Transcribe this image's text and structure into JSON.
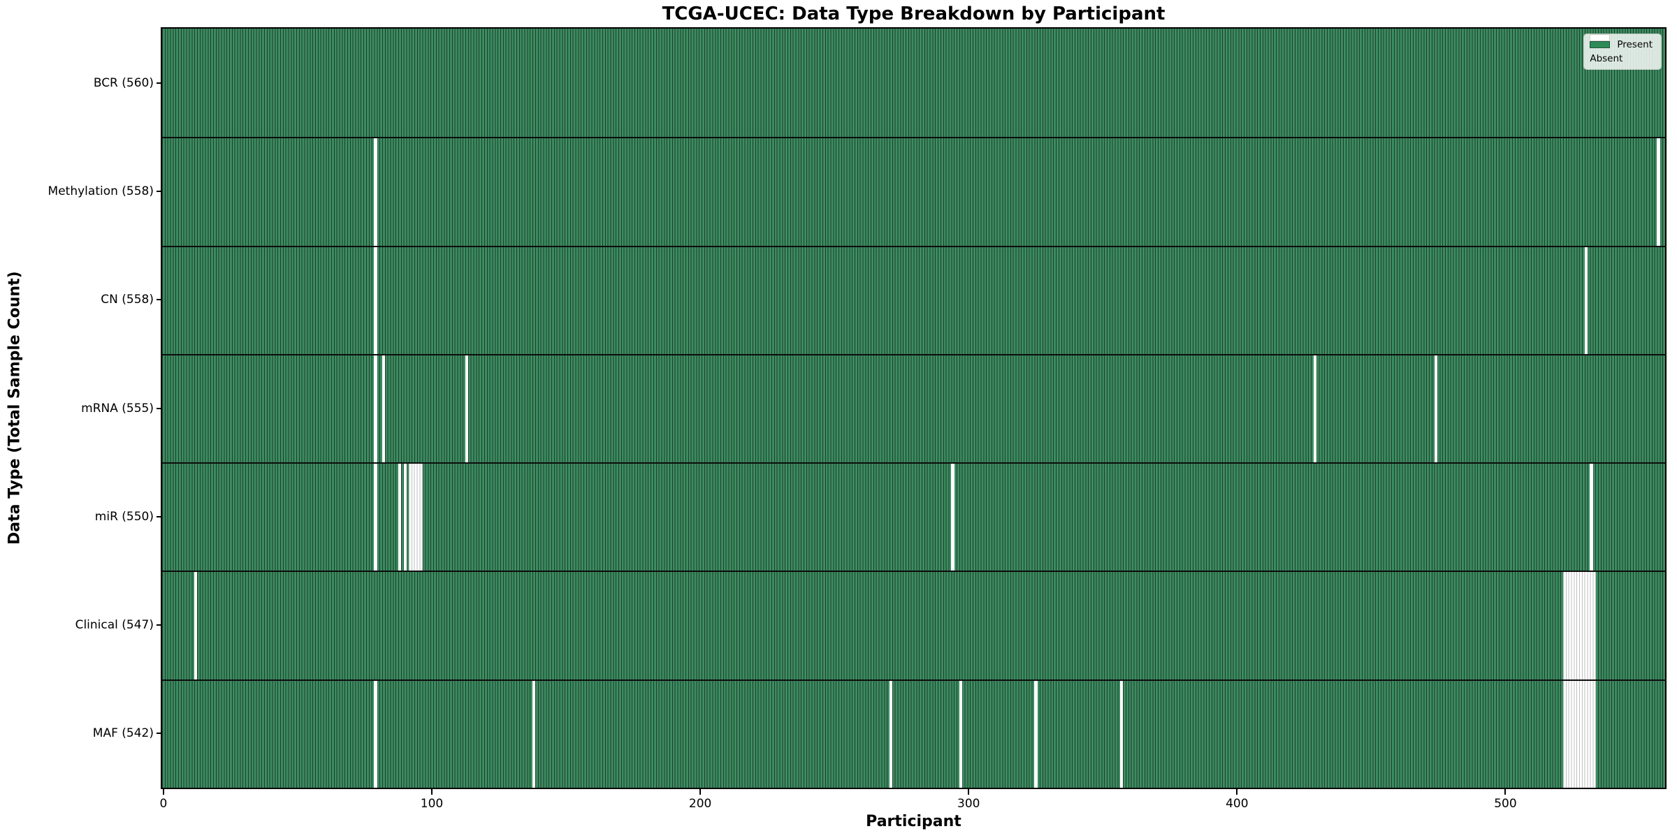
{
  "chart_data": {
    "type": "heatmap",
    "title": "TCGA-UCEC: Data Type Breakdown by Participant",
    "xlabel": "Participant",
    "ylabel": "Data Type (Total Sample Count)",
    "n_participants": 560,
    "x_ticks": [
      0,
      100,
      200,
      300,
      400,
      500
    ],
    "legend": {
      "position": "upper right",
      "present_label": "Present",
      "absent_label": "Absent"
    },
    "colors": {
      "present_fill": "#3b8d61",
      "bar_edge": "#203c2a",
      "absent_fill": "#ffffff",
      "absent_edge": "#bfbfbf",
      "row_divider": "#0d0d0d",
      "legend_present_swatch": "#2e8b57"
    },
    "rows": [
      {
        "name": "BCR",
        "label": "BCR (560)",
        "present_count": 560,
        "absent_participants": []
      },
      {
        "name": "Methylation",
        "label": "Methylation (558)",
        "present_count": 558,
        "absent_participants": [
          79,
          557
        ]
      },
      {
        "name": "CN",
        "label": "CN (558)",
        "present_count": 558,
        "absent_participants": [
          79,
          530
        ]
      },
      {
        "name": "mRNA",
        "label": "mRNA (555)",
        "present_count": 555,
        "absent_participants": [
          79,
          82,
          113,
          429,
          474
        ]
      },
      {
        "name": "miR",
        "label": "miR (550)",
        "present_count": 550,
        "absent_participants": [
          79,
          88,
          90,
          92,
          93,
          94,
          95,
          96,
          294,
          532
        ]
      },
      {
        "name": "Clinical",
        "label": "Clinical (547)",
        "present_count": 547,
        "absent_participants": [
          12,
          522,
          523,
          524,
          525,
          526,
          527,
          528,
          529,
          530,
          531,
          532,
          533
        ]
      },
      {
        "name": "MAF",
        "label": "MAF (542)",
        "present_count": 542,
        "absent_participants": [
          79,
          138,
          271,
          297,
          325,
          357,
          522,
          523,
          524,
          525,
          526,
          527,
          528,
          529,
          530,
          531,
          532,
          533
        ]
      }
    ]
  }
}
